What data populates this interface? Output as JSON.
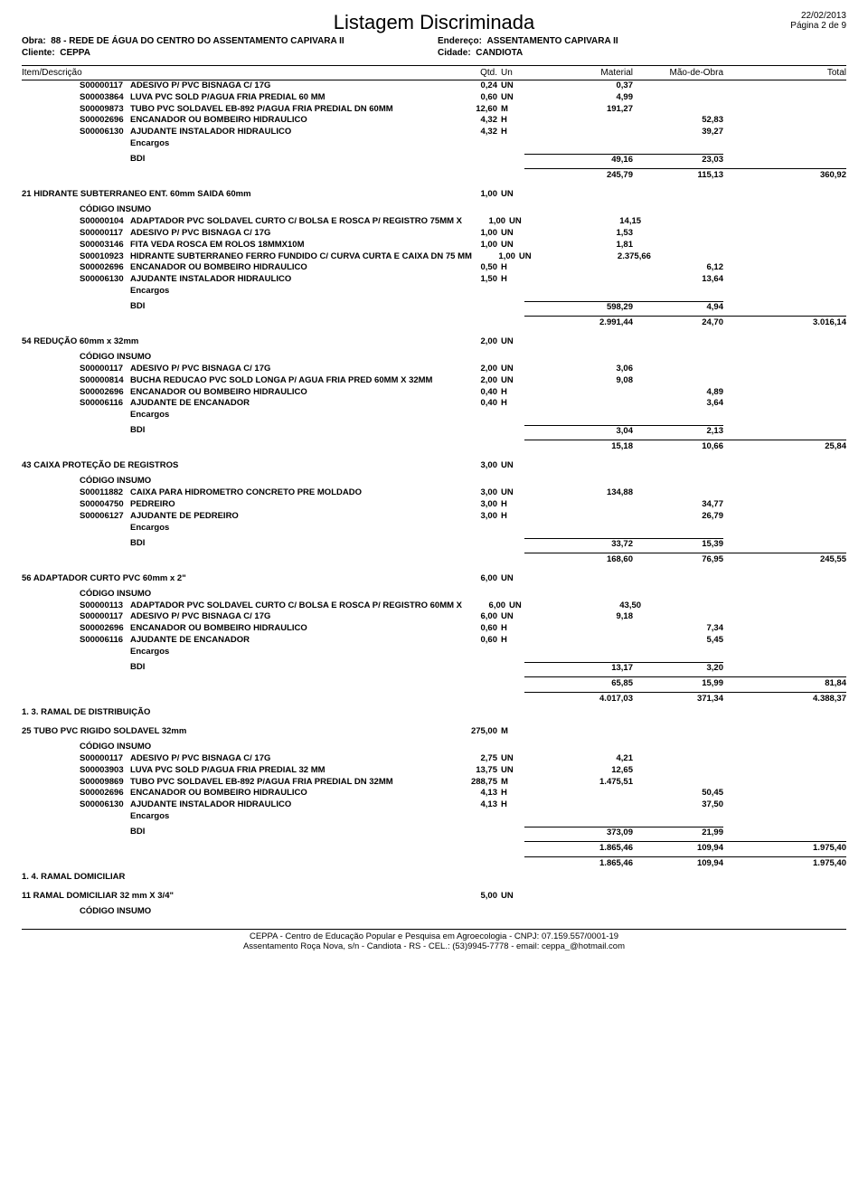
{
  "doc": {
    "title": "Listagem Discriminada",
    "date": "22/02/2013",
    "page": "Página 2 de 9",
    "obra_label": "Obra:",
    "obra": "88 - REDE DE ÁGUA DO CENTRO DO ASSENTAMENTO CAPIVARA II",
    "cliente_label": "Cliente:",
    "cliente": "CEPPA",
    "endereco_label": "Endereço:",
    "endereco": "ASSENTAMENTO CAPIVARA II",
    "cidade_label": "Cidade:",
    "cidade": "CANDIOTA"
  },
  "cols": {
    "desc": "Item/Descrição",
    "qtd": "Qtd.",
    "un": "Un",
    "mat": "Material",
    "mao": "Mão-de-Obra",
    "tot": "Total"
  },
  "labels": {
    "codigo_insumo": "CÓDIGO  INSUMO",
    "encargos": "Encargos",
    "bdi": "BDI"
  },
  "s0": {
    "rows": [
      {
        "c": "S00000117",
        "d": "ADESIVO P/ PVC BISNAGA C/ 17G",
        "q": "0,24",
        "u": "UN",
        "m": "0,37",
        "o": ""
      },
      {
        "c": "S00003864",
        "d": "LUVA PVC SOLD P/AGUA FRIA PREDIAL 60 MM",
        "q": "0,60",
        "u": "UN",
        "m": "4,99",
        "o": ""
      },
      {
        "c": "S00009873",
        "d": "TUBO PVC SOLDAVEL EB-892 P/AGUA FRIA PREDIAL DN 60MM",
        "q": "12,60",
        "u": "M",
        "m": "191,27",
        "o": ""
      },
      {
        "c": "S00002696",
        "d": "ENCANADOR OU BOMBEIRO HIDRAULICO",
        "q": "4,32",
        "u": "H",
        "m": "",
        "o": "52,83"
      },
      {
        "c": "S00006130",
        "d": "AJUDANTE INSTALADOR HIDRAULICO",
        "q": "4,32",
        "u": "H",
        "m": "",
        "o": "39,27"
      }
    ],
    "bdi": {
      "m": "49,16",
      "o": "23,03"
    },
    "sub": {
      "m": "245,79",
      "o": "115,13",
      "t": "360,92"
    }
  },
  "s1": {
    "title": "21 HIDRANTE SUBTERRANEO ENT. 60mm SAIDA 60mm",
    "tq": "1,00",
    "tu": "UN",
    "rows": [
      {
        "c": "S00000104",
        "d": "ADAPTADOR PVC SOLDAVEL CURTO C/ BOLSA E ROSCA P/ REGISTRO 75MM    X",
        "q": "1,00",
        "u": "UN",
        "m": "14,15",
        "o": ""
      },
      {
        "c": "S00000117",
        "d": "ADESIVO P/ PVC BISNAGA C/ 17G",
        "q": "1,00",
        "u": "UN",
        "m": "1,53",
        "o": ""
      },
      {
        "c": "S00003146",
        "d": "FITA VEDA ROSCA EM ROLOS 18MMX10M",
        "q": "1,00",
        "u": "UN",
        "m": "1,81",
        "o": ""
      },
      {
        "c": "S00010923",
        "d": "HIDRANTE SUBTERRANEO FERRO FUNDIDO C/ CURVA CURTA E CAIXA DN 75 MM",
        "q": "1,00",
        "u": "UN",
        "m": "2.375,66",
        "o": ""
      },
      {
        "c": "S00002696",
        "d": "ENCANADOR OU BOMBEIRO HIDRAULICO",
        "q": "0,50",
        "u": "H",
        "m": "",
        "o": "6,12"
      },
      {
        "c": "S00006130",
        "d": "AJUDANTE INSTALADOR HIDRAULICO",
        "q": "1,50",
        "u": "H",
        "m": "",
        "o": "13,64"
      }
    ],
    "bdi": {
      "m": "598,29",
      "o": "4,94"
    },
    "sub": {
      "m": "2.991,44",
      "o": "24,70",
      "t": "3.016,14"
    }
  },
  "s2": {
    "title": "54 REDUÇÃO 60mm x 32mm",
    "tq": "2,00",
    "tu": "UN",
    "rows": [
      {
        "c": "S00000117",
        "d": "ADESIVO P/ PVC BISNAGA C/ 17G",
        "q": "2,00",
        "u": "UN",
        "m": "3,06",
        "o": ""
      },
      {
        "c": "S00000814",
        "d": "BUCHA REDUCAO PVC SOLD LONGA P/ AGUA FRIA PRED 60MM X 32MM",
        "q": "2,00",
        "u": "UN",
        "m": "9,08",
        "o": ""
      },
      {
        "c": "S00002696",
        "d": "ENCANADOR OU BOMBEIRO HIDRAULICO",
        "q": "0,40",
        "u": "H",
        "m": "",
        "o": "4,89"
      },
      {
        "c": "S00006116",
        "d": "AJUDANTE DE ENCANADOR",
        "q": "0,40",
        "u": "H",
        "m": "",
        "o": "3,64"
      }
    ],
    "bdi": {
      "m": "3,04",
      "o": "2,13"
    },
    "sub": {
      "m": "15,18",
      "o": "10,66",
      "t": "25,84"
    }
  },
  "s3": {
    "title": "43 CAIXA PROTEÇÃO DE REGISTROS",
    "tq": "3,00",
    "tu": "UN",
    "rows": [
      {
        "c": "S00011882",
        "d": "CAIXA PARA HIDROMETRO CONCRETO PRE MOLDADO",
        "q": "3,00",
        "u": "UN",
        "m": "134,88",
        "o": ""
      },
      {
        "c": "S00004750",
        "d": "PEDREIRO",
        "q": "3,00",
        "u": "H",
        "m": "",
        "o": "34,77"
      },
      {
        "c": "S00006127",
        "d": "AJUDANTE DE PEDREIRO",
        "q": "3,00",
        "u": "H",
        "m": "",
        "o": "26,79"
      }
    ],
    "bdi": {
      "m": "33,72",
      "o": "15,39"
    },
    "sub": {
      "m": "168,60",
      "o": "76,95",
      "t": "245,55"
    }
  },
  "s4": {
    "title": "56 ADAPTADOR CURTO PVC 60mm x 2\"",
    "tq": "6,00",
    "tu": "UN",
    "rows": [
      {
        "c": "S00000113",
        "d": "ADAPTADOR PVC SOLDAVEL CURTO C/ BOLSA E ROSCA P/ REGISTRO 60MM    X",
        "q": "6,00",
        "u": "UN",
        "m": "43,50",
        "o": ""
      },
      {
        "c": "S00000117",
        "d": "ADESIVO P/ PVC BISNAGA C/ 17G",
        "q": "6,00",
        "u": "UN",
        "m": "9,18",
        "o": ""
      },
      {
        "c": "S00002696",
        "d": "ENCANADOR OU BOMBEIRO HIDRAULICO",
        "q": "0,60",
        "u": "H",
        "m": "",
        "o": "7,34"
      },
      {
        "c": "S00006116",
        "d": "AJUDANTE DE ENCANADOR",
        "q": "0,60",
        "u": "H",
        "m": "",
        "o": "5,45"
      }
    ],
    "bdi": {
      "m": "13,17",
      "o": "3,20"
    },
    "sub": {
      "m": "65,85",
      "o": "15,99",
      "t": "81,84"
    }
  },
  "ch3": {
    "m": "4.017,03",
    "o": "371,34",
    "t": "4.388,37",
    "name": "1. 3. RAMAL DE DISTRIBUIÇÃO"
  },
  "s5": {
    "title": "25 TUBO PVC RIGIDO SOLDAVEL 32mm",
    "tq": "275,00",
    "tu": "M",
    "rows": [
      {
        "c": "S00000117",
        "d": "ADESIVO P/ PVC BISNAGA C/ 17G",
        "q": "2,75",
        "u": "UN",
        "m": "4,21",
        "o": ""
      },
      {
        "c": "S00003903",
        "d": "LUVA PVC SOLD P/AGUA FRIA PREDIAL 32 MM",
        "q": "13,75",
        "u": "UN",
        "m": "12,65",
        "o": ""
      },
      {
        "c": "S00009869",
        "d": "TUBO PVC SOLDAVEL EB-892 P/AGUA FRIA PREDIAL DN 32MM",
        "q": "288,75",
        "u": "M",
        "m": "1.475,51",
        "o": ""
      },
      {
        "c": "S00002696",
        "d": "ENCANADOR OU BOMBEIRO HIDRAULICO",
        "q": "4,13",
        "u": "H",
        "m": "",
        "o": "50,45"
      },
      {
        "c": "S00006130",
        "d": "AJUDANTE INSTALADOR HIDRAULICO",
        "q": "4,13",
        "u": "H",
        "m": "",
        "o": "37,50"
      }
    ],
    "bdi": {
      "m": "373,09",
      "o": "21,99"
    },
    "sub": {
      "m": "1.865,46",
      "o": "109,94",
      "t": "1.975,40"
    }
  },
  "ch4": {
    "m": "1.865,46",
    "o": "109,94",
    "t": "1.975,40",
    "name": "1. 4. RAMAL DOMICILIAR"
  },
  "s6": {
    "title": "11 RAMAL DOMICILIAR 32 mm X 3/4\"",
    "tq": "5,00",
    "tu": "UN"
  },
  "footer": {
    "l1": "CEPPA - Centro de Educação Popular e Pesquisa em Agroecologia - CNPJ: 07.159.557/0001-19",
    "l2": "Assentamento Roça Nova, s/n - Candiota - RS - CEL.: (53)9945-7778 - email: ceppa_@hotmail.com"
  }
}
